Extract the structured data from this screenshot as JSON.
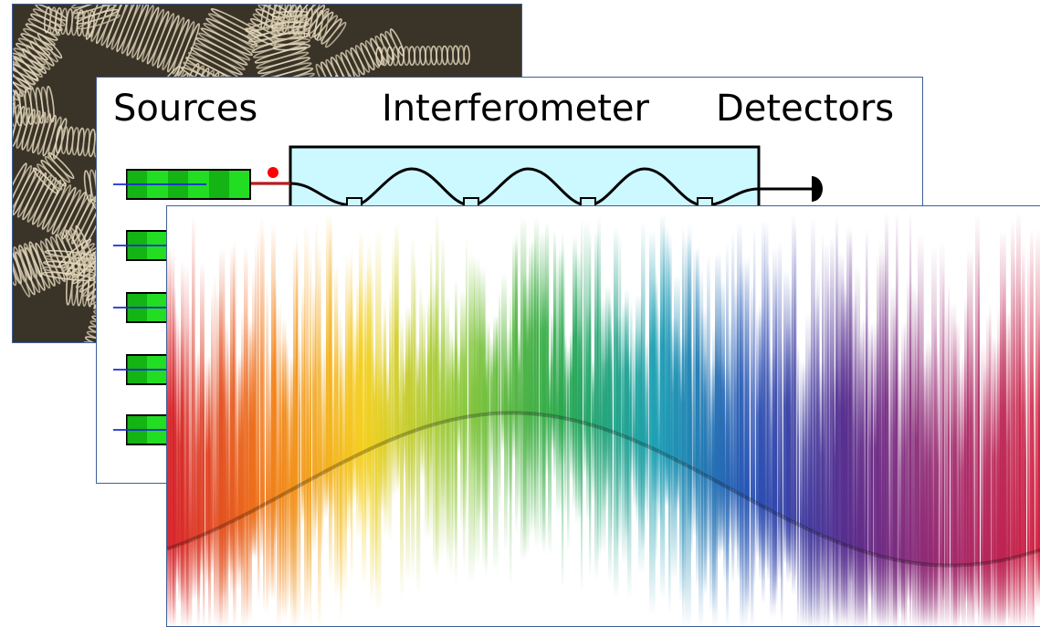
{
  "photo": {
    "subject": "pile of metal springs",
    "colors": {
      "bg": "#6e6250",
      "metal": "#c8bca0",
      "shadow": "#3a3328"
    }
  },
  "diagram": {
    "headings": {
      "sources": "Sources",
      "interferometer": "Interferometer",
      "detectors": "Detectors"
    },
    "colors": {
      "source_fill": "#22dd22",
      "source_dark": "#0a9a0a",
      "waveguide_fill": "#ccf8ff",
      "input_line": "#1a2bd8",
      "photon": "#ff0000"
    }
  },
  "spectrum": {
    "subject": "rainbow spectrum with sine wave",
    "colors": [
      "#d4202a",
      "#f07a18",
      "#f4d020",
      "#8cc83c",
      "#2aa84a",
      "#1ea0b4",
      "#2850b4",
      "#5a2c8c",
      "#a02a6e",
      "#d41e3c"
    ]
  }
}
